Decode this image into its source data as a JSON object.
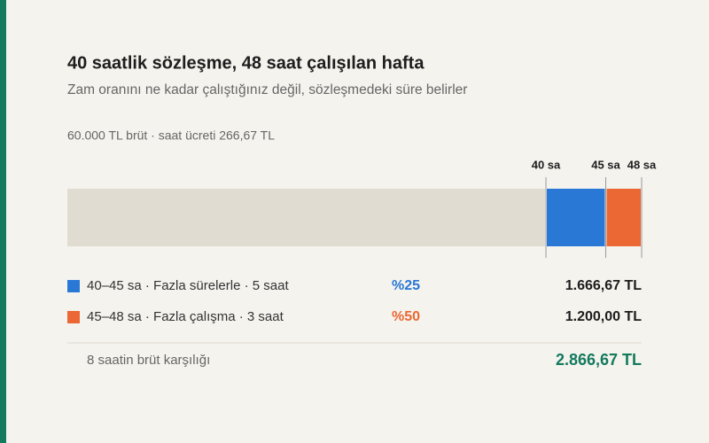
{
  "chart_data": {
    "type": "stacked-hbar",
    "title": "40 saatlik sözleşme, 48 saat çalışılan hafta",
    "subtitle": "Zam oranını ne kadar çalıştığınız değil, sözleşmedeki süre belirler",
    "note": "60.000 TL brüt · saat ücreti 266,67 TL",
    "xlim": [
      0,
      48
    ],
    "xticks": [
      {
        "value": 40,
        "label": "40 sa"
      },
      {
        "value": 45,
        "label": "45 sa"
      },
      {
        "value": 48,
        "label": "48 sa"
      }
    ],
    "series": [
      {
        "color": "#e0dcd2",
        "values": [
          40
        ]
      },
      {
        "name": "40–45 sa · Fazla sürelerle · 5 saat",
        "color": "#2a78d6",
        "values": [
          5
        ],
        "rate": "%25",
        "amount": "1.666,67 TL"
      },
      {
        "name": "45–48 sa · Fazla çalışma · 3 saat",
        "color": "#eb6834",
        "values": [
          3
        ],
        "rate": "%50",
        "amount": "1.200,00 TL"
      }
    ],
    "total": {
      "label": "8 saatin brüt karşılığı",
      "amount": "2.866,67 TL",
      "color": "#137a5e"
    }
  }
}
